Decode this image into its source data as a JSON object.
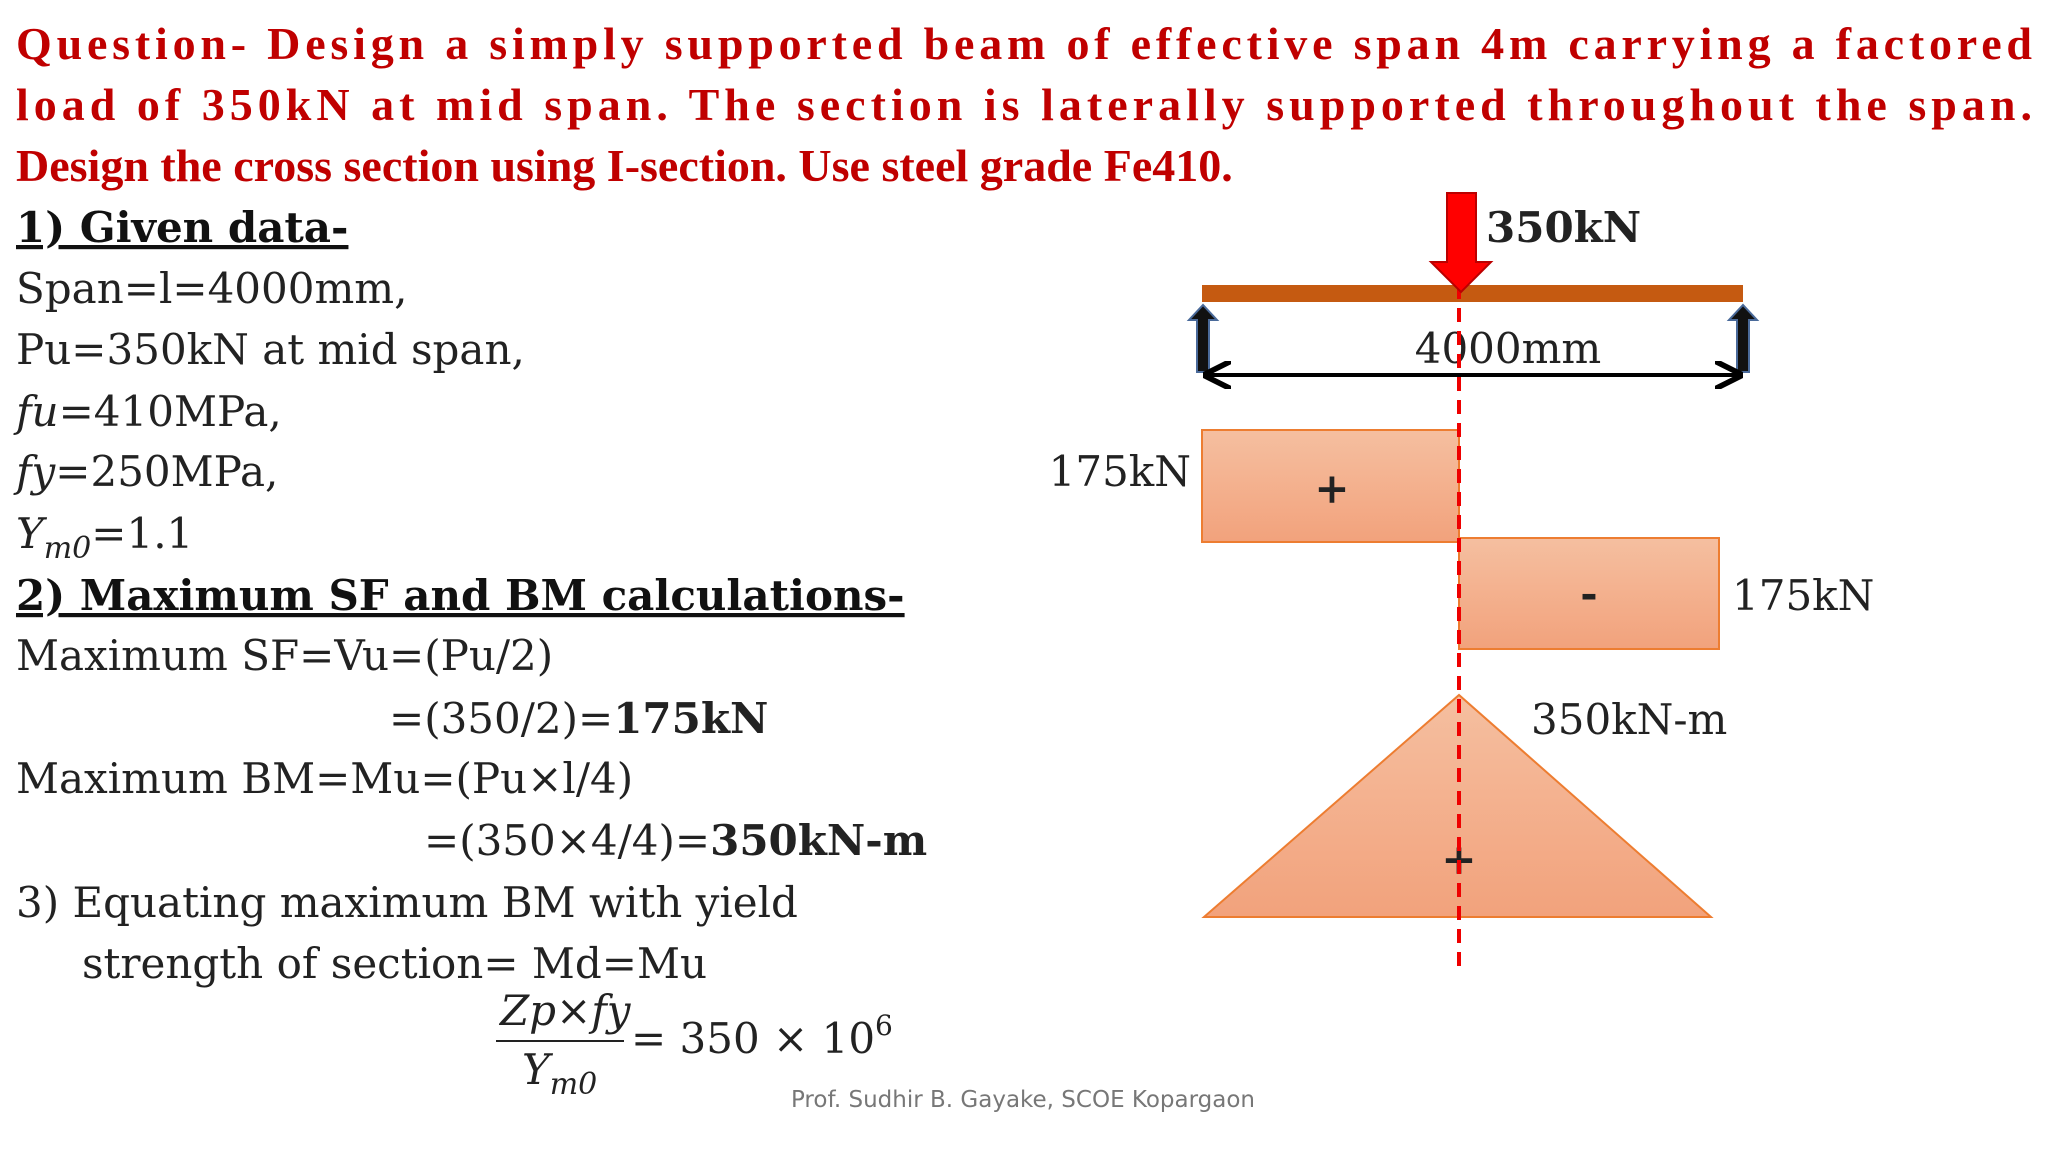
{
  "question": [
    "Question- Design a simply supported beam of effective span 4m carrying a factored",
    "load of 350kN at mid span. The section is laterally supported throughout the span.",
    "Design the cross section using I-section. Use steel grade Fe410."
  ],
  "given": {
    "heading": "1) Given data-",
    "span": "Span=l=4000mm,",
    "load": "Pu=350kN at mid span,",
    "fu": {
      "symbol": "fu",
      "text": "=410MPa,"
    },
    "fy": {
      "symbol": "fy",
      "text": "=250MPa,"
    },
    "gamma": {
      "symbol": "Υ",
      "subscript": "m0",
      "text": "=1.1"
    }
  },
  "calculations": {
    "heading": "2) Maximum SF and BM calculations-",
    "sf": "Maximum SF=Vu=(Pu/2)",
    "sf_result": {
      "expr": "=(350/2)=",
      "value": "175kN"
    },
    "bm": "Maximum BM=Mu=(Pu×l/4)",
    "bm_result": {
      "expr": "=(350×4/4)=",
      "value": "350kN-m"
    }
  },
  "step3": {
    "line1": "3) Equating maximum BM with yield",
    "line2": "strength of section= Md=Mu",
    "equation": {
      "numerator": "Zp×fy",
      "denominator": "Υ",
      "denominator_sub": "m0",
      "rhs": "= 350 × 10",
      "exponent": "6"
    }
  },
  "diagram": {
    "load": "350kN",
    "span": "4000mm",
    "sfd": {
      "left": "175kN",
      "left_sign": "+",
      "right": "175kN",
      "right_sign": "-"
    },
    "bmd": {
      "max": "350kN-m",
      "sign": "+"
    }
  },
  "footer": "Prof. Sudhir B. Gayake, SCOE Kopargaon"
}
